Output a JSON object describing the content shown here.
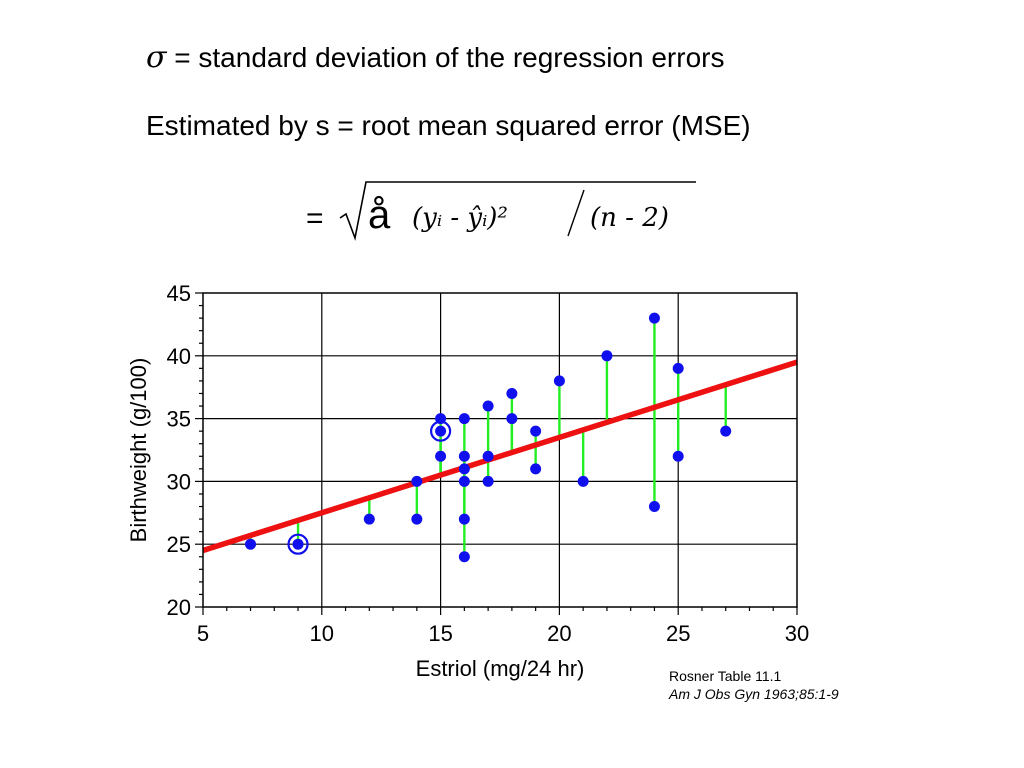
{
  "heading": {
    "sigma_symbol": "σ",
    "definition": "= standard deviation of the regression errors",
    "estimate": "Estimated by s = root mean squared error (MSE)"
  },
  "formula": {
    "equals": "=",
    "sum_glyph": "å",
    "numerator": "(yᵢ - ŷᵢ)²",
    "denominator": "(n - 2)"
  },
  "citation": {
    "source": "Rosner Table 11.1",
    "journal": "Am  J Obs Gyn 1963;85:1-9"
  },
  "colors": {
    "points": "#1010ee",
    "regression_line": "#ee1111",
    "residuals": "#22ee22",
    "frame": "#000000"
  },
  "chart_data": {
    "type": "scatter",
    "title": "",
    "xlabel": "Estriol (mg/24 hr)",
    "ylabel": "Birthweight (g/100)",
    "xlim": [
      5,
      30
    ],
    "ylim": [
      20,
      45
    ],
    "xticks": [
      5,
      10,
      15,
      20,
      25,
      30
    ],
    "yticks": [
      20,
      25,
      30,
      35,
      40,
      45
    ],
    "grid": true,
    "regression_line": {
      "intercept": 21.5,
      "slope": 0.6
    },
    "points": [
      {
        "x": 7,
        "y": 25
      },
      {
        "x": 9,
        "y": 25,
        "highlighted": true
      },
      {
        "x": 12,
        "y": 27
      },
      {
        "x": 14,
        "y": 27
      },
      {
        "x": 14,
        "y": 30
      },
      {
        "x": 15,
        "y": 32
      },
      {
        "x": 15,
        "y": 34,
        "highlighted": true
      },
      {
        "x": 15,
        "y": 35
      },
      {
        "x": 16,
        "y": 24
      },
      {
        "x": 16,
        "y": 27
      },
      {
        "x": 16,
        "y": 30
      },
      {
        "x": 16,
        "y": 31
      },
      {
        "x": 16,
        "y": 32
      },
      {
        "x": 16,
        "y": 35
      },
      {
        "x": 17,
        "y": 30
      },
      {
        "x": 17,
        "y": 32
      },
      {
        "x": 17,
        "y": 36
      },
      {
        "x": 18,
        "y": 35
      },
      {
        "x": 18,
        "y": 37
      },
      {
        "x": 19,
        "y": 31
      },
      {
        "x": 19,
        "y": 34
      },
      {
        "x": 20,
        "y": 38
      },
      {
        "x": 21,
        "y": 30
      },
      {
        "x": 22,
        "y": 40
      },
      {
        "x": 24,
        "y": 28
      },
      {
        "x": 24,
        "y": 43
      },
      {
        "x": 25,
        "y": 32
      },
      {
        "x": 25,
        "y": 39
      },
      {
        "x": 27,
        "y": 34
      }
    ]
  }
}
